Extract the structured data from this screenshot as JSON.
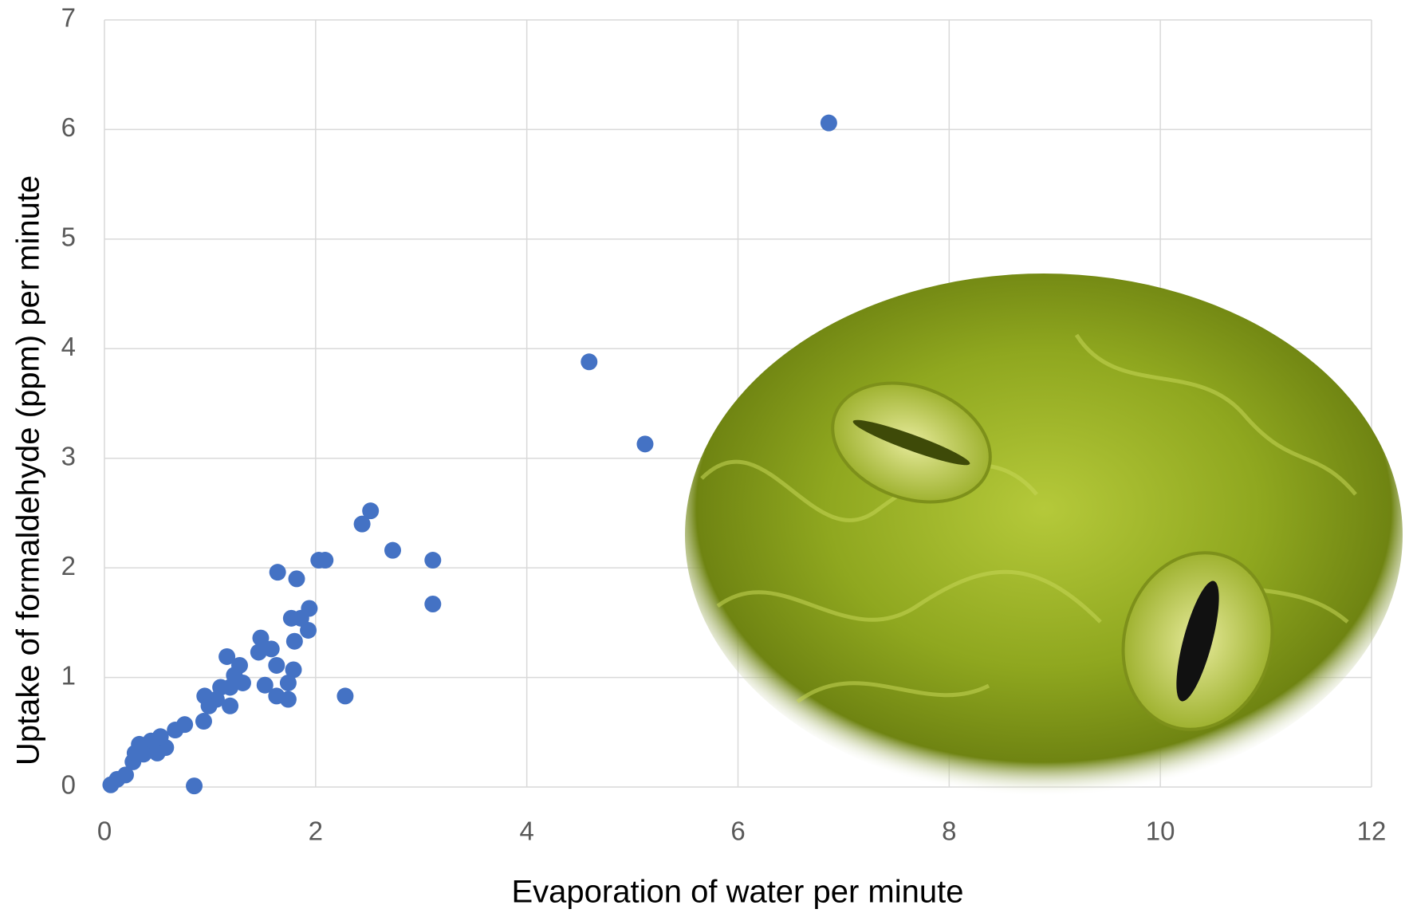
{
  "chart_data": {
    "type": "scatter",
    "x_label": "Evaporation of water per minute",
    "y_label": "Uptake of formaldehyde (ppm) per minute",
    "color": "#4472c4",
    "grid": true,
    "xlim": [
      0,
      12
    ],
    "xticks": [
      0,
      2,
      4,
      6,
      8,
      10,
      12
    ],
    "ylim": [
      0,
      7
    ],
    "yticks": [
      0,
      1,
      2,
      3,
      4,
      5,
      6,
      7
    ],
    "x": [
      6.86,
      4.59,
      5.12,
      2.52,
      2.44,
      2.73,
      3.11,
      3.11,
      2.03,
      2.09,
      1.64,
      1.82,
      2.28,
      0.85,
      1.94,
      1.93,
      1.77,
      1.86,
      1.8,
      1.48,
      1.58,
      1.46,
      1.63,
      1.79,
      1.74,
      1.74,
      1.63,
      1.52,
      1.16,
      1.28,
      1.23,
      1.31,
      1.19,
      1.1,
      1.06,
      0.95,
      0.99,
      1.19,
      0.94,
      0.76,
      0.67,
      0.58,
      0.53,
      0.44,
      0.33,
      0.37,
      0.27,
      0.2,
      0.12,
      0.06,
      0.5,
      0.29
    ],
    "values": [
      6.06,
      3.88,
      3.13,
      2.52,
      2.4,
      2.16,
      2.07,
      1.67,
      2.07,
      2.07,
      1.96,
      1.9,
      0.83,
      0.01,
      1.63,
      1.43,
      1.54,
      1.54,
      1.33,
      1.36,
      1.26,
      1.23,
      1.11,
      1.07,
      0.95,
      0.8,
      0.83,
      0.93,
      1.19,
      1.11,
      1.02,
      0.95,
      0.91,
      0.91,
      0.8,
      0.83,
      0.74,
      0.74,
      0.6,
      0.57,
      0.52,
      0.36,
      0.46,
      0.42,
      0.39,
      0.3,
      0.23,
      0.11,
      0.07,
      0.02,
      0.31,
      0.31
    ]
  }
}
